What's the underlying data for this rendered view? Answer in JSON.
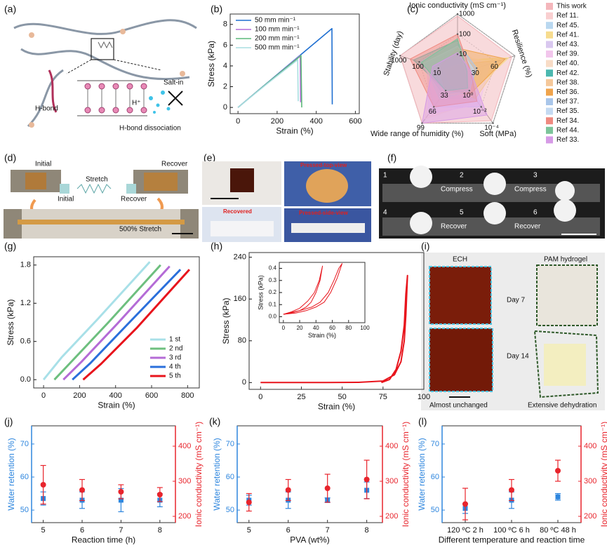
{
  "panel_labels": [
    "(a)",
    "(b)",
    "(c)",
    "(d)",
    "(e)",
    "(f)",
    "(g)",
    "(h)",
    "(i)",
    "(j)",
    "(k)",
    "(l)"
  ],
  "panel_a": {
    "labels": [
      "Salt-in",
      "H⁺",
      "H-bond",
      "H-bond dissociation"
    ]
  },
  "panel_d": {
    "labels": [
      "Initial",
      "Recover",
      "Stretch",
      "Initial",
      "Recover",
      "500% Stretch"
    ]
  },
  "panel_e": {
    "labels": [
      "Pressed-top-view",
      "Recovered",
      "Pressed-side-view"
    ]
  },
  "panel_f": {
    "labels": [
      "1",
      "2",
      "3",
      "4",
      "5",
      "6",
      "Compress",
      "Compress",
      "Recover",
      "Recover"
    ]
  },
  "panel_i": {
    "labels": [
      "ECH",
      "PAM hydrogel",
      "Day 7",
      "Day 14",
      "Almost unchanged",
      "Extensive dehydration"
    ]
  },
  "chart_data": [
    {
      "type": "line",
      "xlabel": "Strain (%)",
      "ylabel": "Stress (kPa)",
      "xlim": [
        -40,
        620
      ],
      "ylim": [
        -0.6,
        9.0
      ],
      "xticks": [
        0,
        200,
        400,
        600
      ],
      "yticks": [
        0,
        2,
        4,
        6,
        8
      ],
      "legend": "upper left",
      "series": [
        {
          "name": "50 mm min⁻¹",
          "color": "#1f6fd1",
          "x": [
            0,
            240,
            480,
            482
          ],
          "values": [
            0,
            3.8,
            7.6,
            0.3
          ]
        },
        {
          "name": "100 mm min⁻¹",
          "color": "#b36ad8",
          "x": [
            0,
            160,
            318,
            320
          ],
          "values": [
            0,
            2.5,
            5.0,
            0.5
          ]
        },
        {
          "name": "200 mm min⁻¹",
          "color": "#5cb87a",
          "x": [
            0,
            160,
            322,
            326
          ],
          "values": [
            0,
            2.5,
            5.0,
            0
          ]
        },
        {
          "name": "500 mm min⁻¹",
          "color": "#a8dde0",
          "x": [
            0,
            150,
            305,
            308
          ],
          "values": [
            0,
            2.3,
            4.6,
            0.6
          ]
        }
      ]
    },
    {
      "type": "radar",
      "legend": "right",
      "axes": [
        {
          "label": "Ionic conductivity (mS cm⁻¹)",
          "lim": [
            1,
            1000
          ],
          "log": true,
          "ticks": [
            10,
            100,
            1000
          ]
        },
        {
          "label": "Resilience (%)",
          "lim": [
            0,
            90
          ],
          "log": false,
          "ticks": [
            30,
            60
          ]
        },
        {
          "label": "Soft (MPa)",
          "lim": [
            100,
            0.0001
          ],
          "log": true,
          "ticks": [
            {
              "value": 1,
              "label": "10⁰"
            },
            {
              "value": 0.01,
              "label": "10⁻²"
            },
            {
              "value": 0.0001,
              "label": "10⁻⁴"
            }
          ]
        },
        {
          "label": "Wide range of humidity (%)",
          "lim": [
            0,
            99
          ],
          "log": false,
          "ticks": [
            33,
            66,
            99
          ]
        },
        {
          "label": "Stability (day)",
          "lim": [
            1,
            1000
          ],
          "log": true,
          "ticks": [
            10,
            100,
            1000
          ]
        }
      ],
      "series": [
        {
          "name": "This work",
          "color": "#f4b6bb",
          "values": [
            800,
            85,
            0.0002,
            99,
            1000
          ]
        },
        {
          "name": "Ref 11.",
          "color": "#f9cfd0",
          "values": [
            20,
            40,
            0.05,
            90,
            30
          ]
        },
        {
          "name": "Ref 45.",
          "color": "#b9d8f0",
          "values": [
            15,
            30,
            0.1,
            50,
            20
          ]
        },
        {
          "name": "Ref 41.",
          "color": "#f7dc8e",
          "values": [
            5,
            80,
            0.5,
            33,
            10
          ]
        },
        {
          "name": "Ref 43.",
          "color": "#d9c8ef",
          "values": [
            30,
            20,
            0.01,
            66,
            50
          ]
        },
        {
          "name": "Ref 39.",
          "color": "#f2c6ec",
          "values": [
            10,
            50,
            0.02,
            80,
            40
          ]
        },
        {
          "name": "Ref 40.",
          "color": "#f8dcc6",
          "values": [
            8,
            60,
            0.3,
            40,
            15
          ]
        },
        {
          "name": "Ref 42.",
          "color": "#4cb8b0",
          "values": [
            50,
            10,
            1,
            33,
            200
          ]
        },
        {
          "name": "Ref 38.",
          "color": "#f5c89a",
          "values": [
            3,
            70,
            0.1,
            20,
            5
          ]
        },
        {
          "name": "Ref 36.",
          "color": "#f0a44c",
          "values": [
            20,
            75,
            0.5,
            33,
            10
          ]
        },
        {
          "name": "Ref 37.",
          "color": "#a9c6ea",
          "values": [
            40,
            30,
            1,
            40,
            100
          ]
        },
        {
          "name": "Ref 35.",
          "color": "#c4daf2",
          "values": [
            25,
            25,
            0.8,
            50,
            60
          ]
        },
        {
          "name": "Ref 34.",
          "color": "#ef8a80",
          "values": [
            100,
            20,
            0.05,
            66,
            300
          ]
        },
        {
          "name": "Ref 44.",
          "color": "#7cc49a",
          "values": [
            60,
            15,
            2,
            33,
            80
          ]
        },
        {
          "name": "Ref 33.",
          "color": "#d69ae6",
          "values": [
            12,
            20,
            0.001,
            99,
            20
          ]
        }
      ]
    },
    {
      "type": "line",
      "xlabel": "Strain (%)",
      "ylabel": "Stress (kPa)",
      "xlim": [
        -55,
        865
      ],
      "ylim": [
        -0.13,
        1.93
      ],
      "xticks": [
        0,
        200,
        400,
        600,
        800
      ],
      "yticks": [
        {
          "value": 0,
          "label": "0.0"
        },
        0.6,
        1.2,
        1.8
      ],
      "legend": "lower right",
      "series": [
        {
          "name": "1 st",
          "color": "#a8e0e8",
          "x": [
            0,
            100,
            300,
            590
          ],
          "values": [
            0,
            0.35,
            0.95,
            1.85
          ]
        },
        {
          "name": "2 nd",
          "color": "#6dbf7e",
          "x": [
            60,
            160,
            360,
            650
          ],
          "values": [
            0,
            0.3,
            0.9,
            1.8
          ]
        },
        {
          "name": "3 rd",
          "color": "#b46bd6",
          "x": [
            110,
            210,
            410,
            700
          ],
          "values": [
            0,
            0.28,
            0.88,
            1.78
          ]
        },
        {
          "name": "4 th",
          "color": "#2a6fdb",
          "x": [
            160,
            260,
            460,
            760
          ],
          "values": [
            0,
            0.26,
            0.85,
            1.73
          ]
        },
        {
          "name": "5 th",
          "color": "#e8141c",
          "x": [
            220,
            320,
            520,
            810
          ],
          "values": [
            0,
            0.25,
            0.82,
            1.73
          ]
        }
      ]
    },
    {
      "type": "line",
      "xlabel": "Strain (%)",
      "ylabel": "Stress (kPa)",
      "xlim": [
        -7,
        100
      ],
      "ylim": [
        -13,
        249
      ],
      "xticks": [
        0,
        25,
        50,
        75,
        100
      ],
      "yticks": [
        0,
        80,
        160,
        240
      ],
      "series": [
        {
          "color": "#e8141c",
          "x": [
            0,
            40,
            60,
            75,
            82,
            86,
            88,
            89,
            90,
            89,
            88,
            86,
            83,
            79,
            74
          ],
          "values": [
            0,
            0,
            0.5,
            3,
            15,
            40,
            80,
            130,
            205,
            170,
            110,
            60,
            25,
            6,
            0
          ]
        }
      ],
      "inset": {
        "type": "line",
        "xlabel": "Strain (%)",
        "ylabel": "Stress (kPa)",
        "xlim": [
          -5,
          100
        ],
        "ylim": [
          -0.05,
          0.45
        ],
        "xticks": [
          0,
          20,
          40,
          60,
          80,
          100
        ],
        "yticks": [
          {
            "value": 0,
            "label": "0.0"
          },
          0.1,
          0.2,
          0.3,
          0.4
        ],
        "series": [
          {
            "color": "#e8141c",
            "x": [
              0,
              10,
              20,
              30,
              38,
              44,
              48,
              45,
              40,
              34,
              28,
              20,
              10,
              0
            ],
            "values": [
              0.02,
              0.04,
              0.07,
              0.13,
              0.2,
              0.3,
              0.42,
              0.3,
              0.2,
              0.12,
              0.08,
              0.05,
              0.03,
              0.02
            ]
          },
          {
            "color": "#e8141c",
            "x": [
              0,
              20,
              35,
              45,
              55,
              62,
              68,
              72,
              66,
              58,
              50,
              40,
              28,
              15,
              0
            ],
            "values": [
              0.02,
              0.05,
              0.08,
              0.12,
              0.2,
              0.3,
              0.4,
              0.44,
              0.32,
              0.2,
              0.12,
              0.08,
              0.05,
              0.03,
              0.02
            ]
          }
        ]
      }
    },
    {
      "type": "errorbar",
      "xlabel": "Reaction time (h)",
      "ylabel": "Water retention (%)",
      "y2label": "Ionic conductivity (mS cm⁻¹)",
      "x": [
        5,
        6,
        7,
        8
      ],
      "xlim": [
        4.7,
        8.4
      ],
      "xticks": [
        5,
        6,
        7,
        8
      ],
      "ylim": [
        46.2,
        75.5
      ],
      "yticks": [
        50,
        60,
        70
      ],
      "y2lim": [
        182,
        458
      ],
      "y2ticks": [
        200,
        300,
        400
      ],
      "series": [
        {
          "color": "#2e86de",
          "marker": "square",
          "values": [
            53.5,
            53,
            53,
            53
          ],
          "errors": [
            2,
            2.5,
            3.5,
            2
          ]
        },
        {
          "color": "#e8242c",
          "marker": "circle",
          "axis": "y2",
          "values": [
            290,
            275,
            270,
            262
          ],
          "errors": [
            55,
            30,
            20,
            20
          ]
        }
      ]
    },
    {
      "type": "errorbar",
      "xlabel": "PVA (wt%)",
      "ylabel": "Water retention (%)",
      "y2label": "Ionic conductivity (mS cm⁻¹)",
      "x": [
        5,
        6,
        7,
        8
      ],
      "xlim": [
        4.7,
        8.4
      ],
      "xticks": [
        5,
        6,
        7,
        8
      ],
      "ylim": [
        46.2,
        75.5
      ],
      "yticks": [
        50,
        60,
        70
      ],
      "y2lim": [
        182,
        458
      ],
      "y2ticks": [
        200,
        300,
        400
      ],
      "series": [
        {
          "color": "#2e86de",
          "marker": "square",
          "values": [
            53,
            53,
            53,
            56
          ],
          "errors": [
            1.5,
            2.5,
            0.7,
            2.5
          ]
        },
        {
          "color": "#e8242c",
          "marker": "circle",
          "axis": "y2",
          "values": [
            240,
            275,
            280,
            305
          ],
          "errors": [
            25,
            30,
            40,
            55
          ]
        }
      ]
    },
    {
      "type": "errorbar",
      "xlabel": "Different temperature and reaction time",
      "ylabel": "Water retention (%)",
      "y2label": "Ionic conductivity (mS cm⁻¹)",
      "categories": [
        "120 ºC 2 h",
        "100 ºC 6 h",
        "80 ºC 48 h"
      ],
      "ylim": [
        46.2,
        75.5
      ],
      "yticks": [
        50,
        60,
        70
      ],
      "y2lim": [
        182,
        458
      ],
      "y2ticks": [
        200,
        300,
        400
      ],
      "series": [
        {
          "color": "#2e86de",
          "marker": "square",
          "values": [
            50.5,
            53,
            54
          ],
          "errors": [
            1.5,
            2.5,
            1
          ]
        },
        {
          "color": "#e8242c",
          "marker": "circle",
          "axis": "y2",
          "values": [
            235,
            275,
            330
          ],
          "errors": [
            45,
            30,
            30
          ]
        }
      ]
    }
  ]
}
